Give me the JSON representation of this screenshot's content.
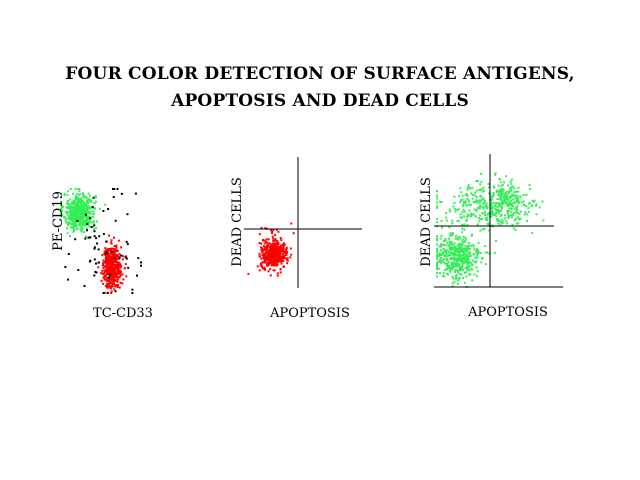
{
  "title": {
    "line1": "FOUR COLOR DETECTION OF SURFACE ANTIGENS,",
    "line2": "APOPTOSIS AND DEAD CELLS"
  },
  "colors": {
    "green": "#33ee55",
    "red": "#ff0000",
    "black": "#000000"
  },
  "chart_data": [
    {
      "type": "scatter",
      "title": "",
      "xlabel": "TC-CD33",
      "ylabel": "PE-CD19",
      "quadrant_lines": false,
      "populations": [
        {
          "color": "green",
          "n": 500,
          "cx": 0.23,
          "cy": 0.78,
          "sx": 0.1,
          "sy": 0.09
        },
        {
          "color": "red",
          "n": 450,
          "cx": 0.64,
          "cy": 0.25,
          "sx": 0.06,
          "sy": 0.1
        },
        {
          "color": "black",
          "n": 70,
          "cx": 0.5,
          "cy": 0.45,
          "sx": 0.22,
          "sy": 0.28
        }
      ]
    },
    {
      "type": "scatter",
      "title": "",
      "xlabel": "APOPTOSIS",
      "ylabel": "DEAD CELLS",
      "quadrant_lines": true,
      "quadrant_split": {
        "x": 0.48,
        "y": 0.46
      },
      "populations": [
        {
          "color": "red",
          "n": 450,
          "cx": 0.33,
          "cy": 0.33,
          "sx": 0.08,
          "sy": 0.08
        },
        {
          "color": "red",
          "n": 12,
          "cx": 0.3,
          "cy": 0.62,
          "sx": 0.1,
          "sy": 0.05
        }
      ]
    },
    {
      "type": "scatter",
      "title": "",
      "xlabel": "APOPTOSIS",
      "ylabel": "DEAD CELLS",
      "quadrant_lines": true,
      "quadrant_split": {
        "x": 0.43,
        "y": 0.46
      },
      "populations": [
        {
          "color": "green",
          "n": 420,
          "cx": 0.16,
          "cy": 0.25,
          "sx": 0.1,
          "sy": 0.1
        },
        {
          "color": "green",
          "n": 300,
          "cx": 0.38,
          "cy": 0.68,
          "sx": 0.18,
          "sy": 0.1
        },
        {
          "color": "green",
          "n": 150,
          "cx": 0.6,
          "cy": 0.72,
          "sx": 0.1,
          "sy": 0.09
        }
      ]
    }
  ]
}
